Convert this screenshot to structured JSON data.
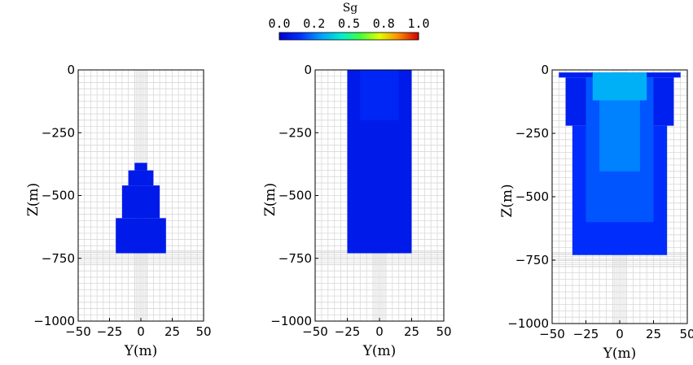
{
  "chart_data": [
    {
      "type": "heatmap",
      "xlabel": "Y(m)",
      "ylabel": "Z(m)",
      "xlim": [
        -50,
        50
      ],
      "ylim": [
        -1000,
        0
      ],
      "xticks": [
        -50,
        -25,
        0,
        25,
        50
      ],
      "yticks": [
        0,
        -250,
        -500,
        -750,
        -1000
      ],
      "x_tick_labels": [
        "-50",
        "-25",
        "0",
        "25",
        "50"
      ],
      "y_tick_labels": [
        "0",
        "-250",
        "-500",
        "-750",
        "-1000"
      ],
      "grid": true,
      "gas_region": [
        {
          "y_from": -5,
          "y_to": 5,
          "z_from": -370,
          "z_to": -400,
          "sg": 0.08
        },
        {
          "y_from": -10,
          "y_to": 10,
          "z_from": -400,
          "z_to": -460,
          "sg": 0.08
        },
        {
          "y_from": -15,
          "y_to": 15,
          "z_from": -460,
          "z_to": -590,
          "sg": 0.08
        },
        {
          "y_from": -20,
          "y_to": 20,
          "z_from": -590,
          "z_to": -730,
          "sg": 0.08
        }
      ]
    },
    {
      "type": "heatmap",
      "xlabel": "Y(m)",
      "ylabel": "Z(m)",
      "xlim": [
        -50,
        50
      ],
      "ylim": [
        -1000,
        0
      ],
      "xticks": [
        -50,
        -25,
        0,
        25,
        50
      ],
      "yticks": [
        0,
        -250,
        -500,
        -750,
        -1000
      ],
      "x_tick_labels": [
        "-50",
        "-25",
        "0",
        "25",
        "50"
      ],
      "y_tick_labels": [
        "0",
        "-250",
        "-500",
        "-750",
        "-1000"
      ],
      "grid": true,
      "gas_region": [
        {
          "y_from": -25,
          "y_to": 25,
          "z_from": 0,
          "z_to": -730,
          "sg": 0.08
        },
        {
          "y_from": -15,
          "y_to": 15,
          "z_from": 0,
          "z_to": -200,
          "sg": 0.12
        }
      ]
    },
    {
      "type": "heatmap",
      "xlabel": "Y(m)",
      "ylabel": "Z(m)",
      "xlim": [
        -50,
        50
      ],
      "ylim": [
        -1000,
        0
      ],
      "xticks": [
        -50,
        -25,
        0,
        25,
        50
      ],
      "yticks": [
        0,
        -250,
        -500,
        -750,
        -1000
      ],
      "x_tick_labels": [
        "-50",
        "-25",
        "0",
        "25",
        "50"
      ],
      "y_tick_labels": [
        "0",
        "-250",
        "-500",
        "-750",
        "-1000"
      ],
      "grid": true,
      "gas_region": [
        {
          "y_from": -45,
          "y_to": 45,
          "z_from": -10,
          "z_to": -30,
          "sg": 0.1
        },
        {
          "y_from": -40,
          "y_to": 40,
          "z_from": -30,
          "z_to": -220,
          "sg": 0.1
        },
        {
          "y_from": -35,
          "y_to": 35,
          "z_from": -220,
          "z_to": -730,
          "sg": 0.14
        },
        {
          "y_from": -25,
          "y_to": 25,
          "z_from": -30,
          "z_to": -600,
          "sg": 0.2
        },
        {
          "y_from": -15,
          "y_to": 15,
          "z_from": -30,
          "z_to": -400,
          "sg": 0.26
        },
        {
          "y_from": -20,
          "y_to": 20,
          "z_from": -10,
          "z_to": -120,
          "sg": 0.33
        }
      ]
    }
  ],
  "colorbar": {
    "title": "Sg",
    "min": 0,
    "max": 1,
    "ticks": [
      0,
      0.2,
      0.5,
      0.8,
      1
    ],
    "tick_labels": [
      "0.0",
      "0.2",
      "0.5",
      "0.8",
      "1.0"
    ],
    "colormap": "jet",
    "colors": [
      "#0000d0",
      "#0050ff",
      "#00c0ff",
      "#20ff90",
      "#c0ff20",
      "#ffd000",
      "#ff6000",
      "#d00000"
    ]
  }
}
